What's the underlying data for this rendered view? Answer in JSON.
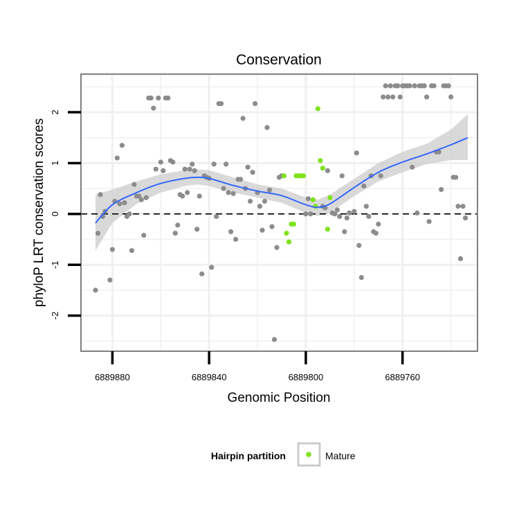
{
  "chart_data": {
    "type": "scatter",
    "title": "Conservation",
    "xlabel": "Genomic Position",
    "ylabel": "phyloP LRT conservation scores",
    "x_reversed": true,
    "xlim": [
      6889893,
      6889729
    ],
    "ylim": [
      -2.7,
      2.75
    ],
    "x_ticks": [
      6889880,
      6889840,
      6889800,
      6889760
    ],
    "x_tick_labels": [
      "6889880",
      "6889840",
      "6889800",
      "6889760"
    ],
    "y_ticks": [
      -2,
      -1,
      0,
      1,
      2
    ],
    "y_tick_labels": [
      "-2",
      "-1",
      "0",
      "1",
      "2"
    ],
    "grid": true,
    "reference_line": {
      "y": 0,
      "style": "dashed"
    },
    "legend": {
      "title": "Hairpin partition",
      "position": "bottom",
      "entries": [
        "Mature"
      ]
    },
    "colors": {
      "other": "#8c8c8c",
      "mature": "#7fe31a",
      "smooth": "#3366ff",
      "ribbon": "#cccccc",
      "panel_border": "#7f7f7f",
      "grid": "#f0f0f0"
    },
    "series": [
      {
        "name": "",
        "color": "#8c8c8c",
        "points": [
          [
            6889887,
            -1.5
          ],
          [
            6889886,
            -0.38
          ],
          [
            6889885,
            0.38
          ],
          [
            6889884,
            -0.05
          ],
          [
            6889883,
            0.05
          ],
          [
            6889881,
            -1.3
          ],
          [
            6889880,
            -0.7
          ],
          [
            6889879,
            0.25
          ],
          [
            6889878,
            1.1
          ],
          [
            6889877,
            0.2
          ],
          [
            6889876,
            1.35
          ],
          [
            6889875,
            0.22
          ],
          [
            6889874,
            -0.05
          ],
          [
            6889873,
            0.0
          ],
          [
            6889872,
            -0.72
          ],
          [
            6889871,
            0.58
          ],
          [
            6889870,
            0.35
          ],
          [
            6889869,
            0.35
          ],
          [
            6889868,
            0.28
          ],
          [
            6889867,
            -0.42
          ],
          [
            6889866,
            0.32
          ],
          [
            6889865,
            2.28
          ],
          [
            6889864,
            2.28
          ],
          [
            6889863,
            2.08
          ],
          [
            6889862,
            0.88
          ],
          [
            6889861,
            2.28
          ],
          [
            6889860,
            1.02
          ],
          [
            6889859,
            0.85
          ],
          [
            6889858,
            2.28
          ],
          [
            6889857,
            2.28
          ],
          [
            6889856,
            1.05
          ],
          [
            6889855,
            1.02
          ],
          [
            6889854,
            -0.38
          ],
          [
            6889853,
            -0.22
          ],
          [
            6889852,
            0.38
          ],
          [
            6889851,
            0.35
          ],
          [
            6889850,
            0.88
          ],
          [
            6889849,
            0.42
          ],
          [
            6889848,
            0.88
          ],
          [
            6889847,
            0.98
          ],
          [
            6889846,
            0.85
          ],
          [
            6889845,
            -0.3
          ],
          [
            6889844,
            0.35
          ],
          [
            6889843,
            -1.18
          ],
          [
            6889842,
            0.75
          ],
          [
            6889841,
            0.72
          ],
          [
            6889840,
            0.7
          ],
          [
            6889839,
            -1.05
          ],
          [
            6889838,
            0.98
          ],
          [
            6889837,
            -0.05
          ],
          [
            6889836,
            2.17
          ],
          [
            6889835,
            2.17
          ],
          [
            6889834,
            0.5
          ],
          [
            6889833,
            0.98
          ],
          [
            6889832,
            0.42
          ],
          [
            6889831,
            -0.35
          ],
          [
            6889830,
            0.4
          ],
          [
            6889829,
            -0.5
          ],
          [
            6889828,
            0.68
          ],
          [
            6889827,
            0.68
          ],
          [
            6889826,
            1.88
          ],
          [
            6889825,
            0.5
          ],
          [
            6889824,
            0.92
          ],
          [
            6889823,
            0.25
          ],
          [
            6889822,
            0.82
          ],
          [
            6889821,
            2.17
          ],
          [
            6889820,
            0.42
          ],
          [
            6889819,
            0.15
          ],
          [
            6889818,
            -0.32
          ],
          [
            6889817,
            0.25
          ],
          [
            6889816,
            1.7
          ],
          [
            6889815,
            0.47
          ],
          [
            6889814,
            -0.25
          ],
          [
            6889813,
            -2.47
          ],
          [
            6889812,
            -0.66
          ],
          [
            6889811,
            0.72
          ],
          [
            6889810,
            0.75
          ],
          [
            6889800,
            0.0
          ],
          [
            6889799,
            0.3
          ],
          [
            6889798,
            0.0
          ],
          [
            6889793,
            0.15
          ],
          [
            6889792,
            0.12
          ],
          [
            6889791,
            0.85
          ],
          [
            6889789,
            0.02
          ],
          [
            6889788,
            0.0
          ],
          [
            6889787,
            0.08
          ],
          [
            6889786,
            -0.05
          ],
          [
            6889785,
            0.75
          ],
          [
            6889784,
            -0.35
          ],
          [
            6889783,
            -0.08
          ],
          [
            6889782,
            0.02
          ],
          [
            6889780,
            0.05
          ],
          [
            6889779,
            1.2
          ],
          [
            6889778,
            -0.62
          ],
          [
            6889777,
            -1.25
          ],
          [
            6889776,
            0.55
          ],
          [
            6889775,
            0.15
          ],
          [
            6889774,
            -0.05
          ],
          [
            6889773,
            0.75
          ],
          [
            6889772,
            -0.35
          ],
          [
            6889771,
            -0.38
          ],
          [
            6889770,
            -0.2
          ],
          [
            6889769,
            0.75
          ],
          [
            6889768,
            2.3
          ],
          [
            6889767,
            2.52
          ],
          [
            6889766,
            2.3
          ],
          [
            6889765,
            2.52
          ],
          [
            6889764,
            2.3
          ],
          [
            6889763,
            2.52
          ],
          [
            6889762,
            2.52
          ],
          [
            6889761,
            2.3
          ],
          [
            6889760,
            2.52
          ],
          [
            6889759,
            2.52
          ],
          [
            6889758,
            2.52
          ],
          [
            6889757,
            2.52
          ],
          [
            6889756,
            0.92
          ],
          [
            6889755,
            2.52
          ],
          [
            6889754,
            0.02
          ],
          [
            6889753,
            2.52
          ],
          [
            6889752,
            2.52
          ],
          [
            6889751,
            2.52
          ],
          [
            6889750,
            2.3
          ],
          [
            6889749,
            -0.15
          ],
          [
            6889748,
            2.52
          ],
          [
            6889747,
            2.52
          ],
          [
            6889746,
            1.22
          ],
          [
            6889745,
            1.22
          ],
          [
            6889744,
            0.48
          ],
          [
            6889743,
            2.52
          ],
          [
            6889742,
            2.52
          ],
          [
            6889741,
            2.52
          ],
          [
            6889740,
            2.3
          ],
          [
            6889739,
            0.72
          ],
          [
            6889738,
            0.72
          ],
          [
            6889737,
            0.15
          ],
          [
            6889736,
            -0.88
          ],
          [
            6889735,
            0.15
          ],
          [
            6889734,
            -0.08
          ]
        ]
      },
      {
        "name": "Mature",
        "color": "#7fe31a",
        "points": [
          [
            6889809,
            0.75
          ],
          [
            6889808,
            -0.38
          ],
          [
            6889807,
            -0.55
          ],
          [
            6889806,
            -0.2
          ],
          [
            6889805,
            -0.2
          ],
          [
            6889804,
            0.75
          ],
          [
            6889803,
            0.75
          ],
          [
            6889802,
            0.75
          ],
          [
            6889801,
            0.75
          ],
          [
            6889797,
            0.28
          ],
          [
            6889796,
            0.15
          ],
          [
            6889795,
            2.07
          ],
          [
            6889794,
            1.05
          ],
          [
            6889793,
            0.9
          ],
          [
            6889791,
            -0.3
          ],
          [
            6889790,
            0.32
          ]
        ]
      }
    ],
    "smooth": {
      "method": "loess",
      "x": [
        6889887,
        6889880,
        6889870,
        6889860,
        6889850,
        6889845,
        6889840,
        6889830,
        6889820,
        6889810,
        6889800,
        6889795,
        6889790,
        6889780,
        6889770,
        6889760,
        6889750,
        6889740,
        6889733
      ],
      "y": [
        -0.18,
        0.18,
        0.42,
        0.6,
        0.7,
        0.72,
        0.7,
        0.56,
        0.45,
        0.36,
        0.18,
        0.13,
        0.2,
        0.52,
        0.82,
        1.02,
        1.18,
        1.36,
        1.5
      ],
      "lower": [
        -0.72,
        -0.18,
        0.2,
        0.42,
        0.55,
        0.58,
        0.55,
        0.42,
        0.32,
        0.22,
        0.02,
        -0.04,
        0.02,
        0.35,
        0.64,
        0.82,
        0.98,
        1.06,
        1.06
      ],
      "upper": [
        0.38,
        0.48,
        0.64,
        0.78,
        0.86,
        0.88,
        0.86,
        0.72,
        0.58,
        0.5,
        0.32,
        0.28,
        0.38,
        0.69,
        1.0,
        1.22,
        1.38,
        1.66,
        1.96
      ]
    }
  }
}
